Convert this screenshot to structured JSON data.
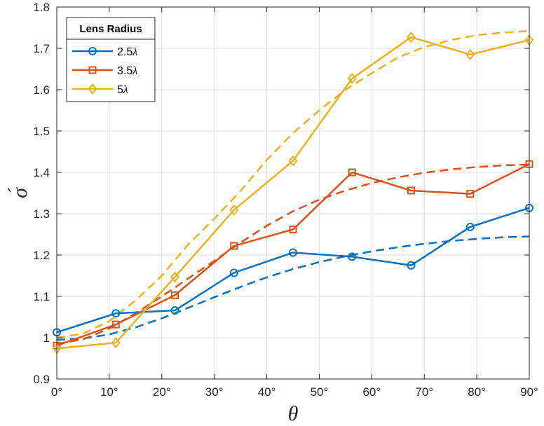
{
  "chart_data": {
    "type": "line",
    "xlabel": "θ",
    "ylabel": "σ́",
    "xlim": [
      0,
      90
    ],
    "ylim": [
      0.9,
      1.8
    ],
    "xticks": [
      0,
      10,
      20,
      30,
      40,
      50,
      60,
      70,
      80,
      90
    ],
    "yticks": [
      0.9,
      1,
      1.1,
      1.2,
      1.3,
      1.4,
      1.5,
      1.6,
      1.7,
      1.8
    ],
    "xtick_labels": [
      "0°",
      "10°",
      "20°",
      "30°",
      "40°",
      "50°",
      "60°",
      "70°",
      "80°",
      "90°"
    ],
    "ytick_labels": [
      "0.9",
      "1",
      "1.1",
      "1.2",
      "1.3",
      "1.4",
      "1.5",
      "1.6",
      "1.7",
      "1.8"
    ],
    "grid": true,
    "legend": {
      "title": "Lens Radius",
      "position": "top-left"
    },
    "x": [
      0,
      11.25,
      22.5,
      33.75,
      45,
      56.25,
      67.5,
      78.75,
      90
    ],
    "series": [
      {
        "name": "2.5λ",
        "label_num": "2.5",
        "label_sym": "λ",
        "color": "#0072BD",
        "marker": "circle",
        "values": [
          1.013,
          1.059,
          1.066,
          1.157,
          1.206,
          1.196,
          1.175,
          1.268,
          1.314
        ],
        "fit_x": [
          0,
          5,
          10,
          15,
          20,
          25,
          30,
          35,
          40,
          45,
          50,
          55,
          60,
          65,
          70,
          75,
          80,
          85,
          90
        ],
        "fit": [
          0.995,
          0.998,
          1.008,
          1.025,
          1.047,
          1.072,
          1.098,
          1.123,
          1.146,
          1.166,
          1.183,
          1.197,
          1.209,
          1.219,
          1.227,
          1.234,
          1.239,
          1.243,
          1.245
        ]
      },
      {
        "name": "3.5λ",
        "label_num": "3.5",
        "label_sym": "λ",
        "color": "#D95319",
        "marker": "square",
        "values": [
          0.981,
          1.032,
          1.103,
          1.222,
          1.262,
          1.4,
          1.356,
          1.348,
          1.42
        ],
        "fit_x": [
          0,
          5,
          10,
          15,
          20,
          25,
          30,
          35,
          40,
          45,
          50,
          55,
          60,
          65,
          70,
          75,
          80,
          85,
          90
        ],
        "fit": [
          0.985,
          0.996,
          1.022,
          1.059,
          1.1,
          1.143,
          1.186,
          1.23,
          1.271,
          1.306,
          1.334,
          1.356,
          1.374,
          1.388,
          1.399,
          1.407,
          1.413,
          1.417,
          1.419
        ]
      },
      {
        "name": "5λ",
        "label_num": "5",
        "label_sym": "λ",
        "color": "#EDB120",
        "marker": "diamond",
        "values": [
          0.974,
          0.988,
          1.147,
          1.309,
          1.428,
          1.627,
          1.727,
          1.685,
          1.72
        ],
        "fit_x": [
          0,
          5,
          10,
          15,
          20,
          25,
          30,
          35,
          40,
          45,
          50,
          55,
          60,
          65,
          70,
          75,
          80,
          85,
          90
        ],
        "fit": [
          1.0,
          1.01,
          1.04,
          1.09,
          1.15,
          1.225,
          1.288,
          1.355,
          1.43,
          1.495,
          1.55,
          1.6,
          1.64,
          1.678,
          1.703,
          1.72,
          1.732,
          1.738,
          1.742
        ]
      }
    ]
  }
}
